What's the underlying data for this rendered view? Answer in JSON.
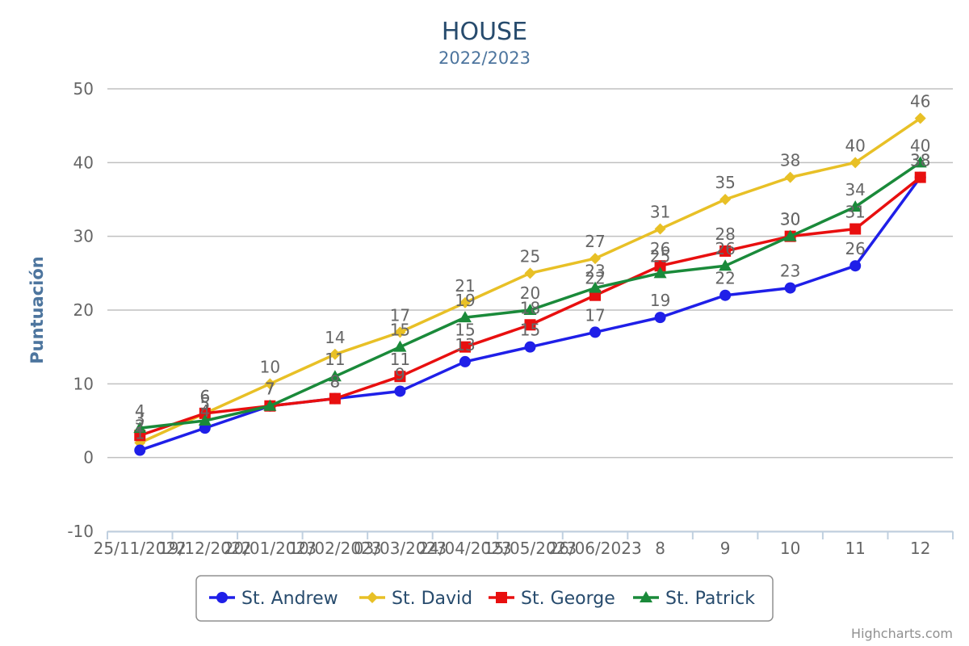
{
  "chart_data": {
    "type": "line",
    "title": "HOUSE",
    "subtitle": "2022/2023",
    "xlabel": "",
    "ylabel": "Puntuación",
    "categories": [
      "25/11/2022",
      "19/12/2022",
      "20/01/2023",
      "10/02/2023",
      "03/03/2023",
      "24/04/2023",
      "15/05/2023",
      "26/06/2023",
      "8",
      "9",
      "10",
      "11",
      "12"
    ],
    "ylim": [
      -10,
      50
    ],
    "yticks": [
      -10,
      0,
      10,
      20,
      30,
      40,
      50
    ],
    "grid": true,
    "legend_position": "bottom",
    "data_labels": true,
    "series": [
      {
        "name": "St. Andrew",
        "color": "#1f1fe8",
        "marker": "circle",
        "values": [
          1,
          4,
          7,
          8,
          9,
          13,
          15,
          17,
          19,
          22,
          23,
          26,
          38
        ]
      },
      {
        "name": "St. David",
        "color": "#e8c026",
        "marker": "diamond",
        "values": [
          2,
          6,
          10,
          14,
          17,
          21,
          25,
          27,
          31,
          35,
          38,
          40,
          46
        ]
      },
      {
        "name": "St. George",
        "color": "#e80f0f",
        "marker": "square",
        "values": [
          3,
          6,
          7,
          8,
          11,
          15,
          18,
          22,
          26,
          28,
          30,
          31,
          38
        ]
      },
      {
        "name": "St. Patrick",
        "color": "#1a8a3a",
        "marker": "triangle",
        "values": [
          4,
          5,
          7,
          11,
          15,
          19,
          20,
          23,
          25,
          26,
          30,
          34,
          40
        ]
      }
    ]
  },
  "credits": "Highcharts.com"
}
